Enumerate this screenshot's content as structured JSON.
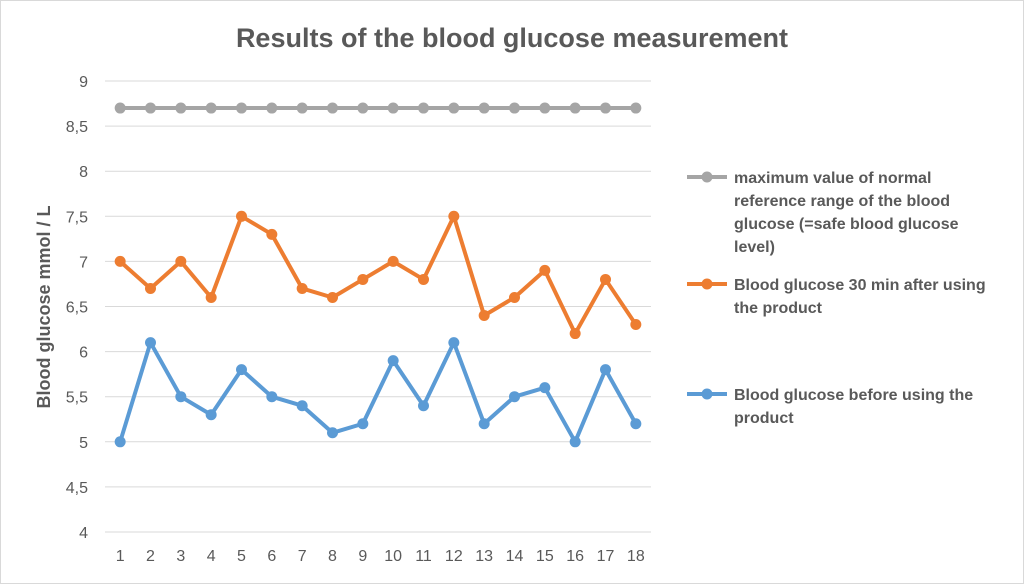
{
  "chart_data": {
    "type": "line",
    "title": "Results of the blood glucose measurement",
    "xlabel": "",
    "ylabel": "Blood glucose mmol / L",
    "x": [
      "1",
      "2",
      "3",
      "4",
      "5",
      "6",
      "7",
      "8",
      "9",
      "10",
      "11",
      "12",
      "13",
      "14",
      "15",
      "16",
      "17",
      "18"
    ],
    "ylim": [
      4,
      9
    ],
    "yticks": [
      "4",
      "4,5",
      "5",
      "5,5",
      "6",
      "6,5",
      "7",
      "7,5",
      "8",
      "8,5",
      "9"
    ],
    "grid": true,
    "legend_position": "right",
    "series": [
      {
        "name": "maximum value of normal reference range of the blood glucose (=safe blood glucose level)",
        "legend_lines": [
          "maximum value of normal",
          "reference range of the blood",
          "glucose (=safe blood glucose",
          "level)"
        ],
        "color": "#a5a5a5",
        "values": [
          8.7,
          8.7,
          8.7,
          8.7,
          8.7,
          8.7,
          8.7,
          8.7,
          8.7,
          8.7,
          8.7,
          8.7,
          8.7,
          8.7,
          8.7,
          8.7,
          8.7,
          8.7
        ]
      },
      {
        "name": "Blood glucose 30 min after using the product",
        "legend_lines": [
          "Blood glucose 30 min after using",
          "the product"
        ],
        "color": "#ed7d31",
        "values": [
          7.0,
          6.7,
          7.0,
          6.6,
          7.5,
          7.3,
          6.7,
          6.6,
          6.8,
          7.0,
          6.8,
          7.5,
          6.4,
          6.6,
          6.9,
          6.2,
          6.8,
          6.3
        ]
      },
      {
        "name": "Blood glucose before using the product",
        "legend_lines": [
          "Blood glucose before using the",
          "product"
        ],
        "color": "#5b9bd5",
        "values": [
          5.0,
          6.1,
          5.5,
          5.3,
          5.8,
          5.5,
          5.4,
          5.1,
          5.2,
          5.9,
          5.4,
          6.1,
          5.2,
          5.5,
          5.6,
          5.0,
          5.8,
          5.2
        ]
      }
    ]
  }
}
